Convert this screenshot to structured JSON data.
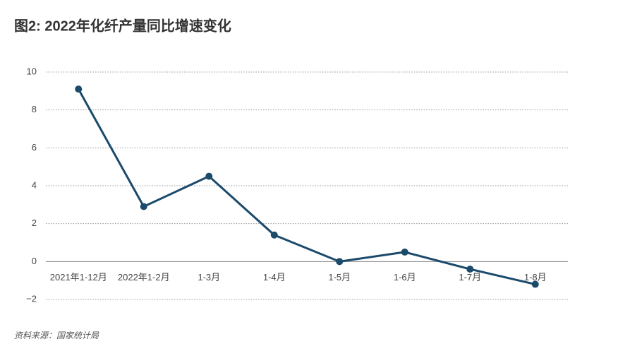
{
  "chart_data": {
    "type": "line",
    "title": "图2: 2022年化纤产量同比增速变化",
    "source": "资料来源：国家统计局",
    "categories": [
      "2021年1-12月",
      "2022年1-2月",
      "1-3月",
      "1-4月",
      "1-5月",
      "1-6月",
      "1-7月",
      "1-8月"
    ],
    "values": [
      9.1,
      2.9,
      4.5,
      1.4,
      0,
      0.5,
      -0.4,
      -1.2
    ],
    "color": "#1b4a6b",
    "ylim": [
      -2,
      10
    ],
    "yticks": [
      {
        "value": -2,
        "label": "−2"
      },
      0,
      2,
      4,
      6,
      8,
      10
    ],
    "grid": true
  }
}
